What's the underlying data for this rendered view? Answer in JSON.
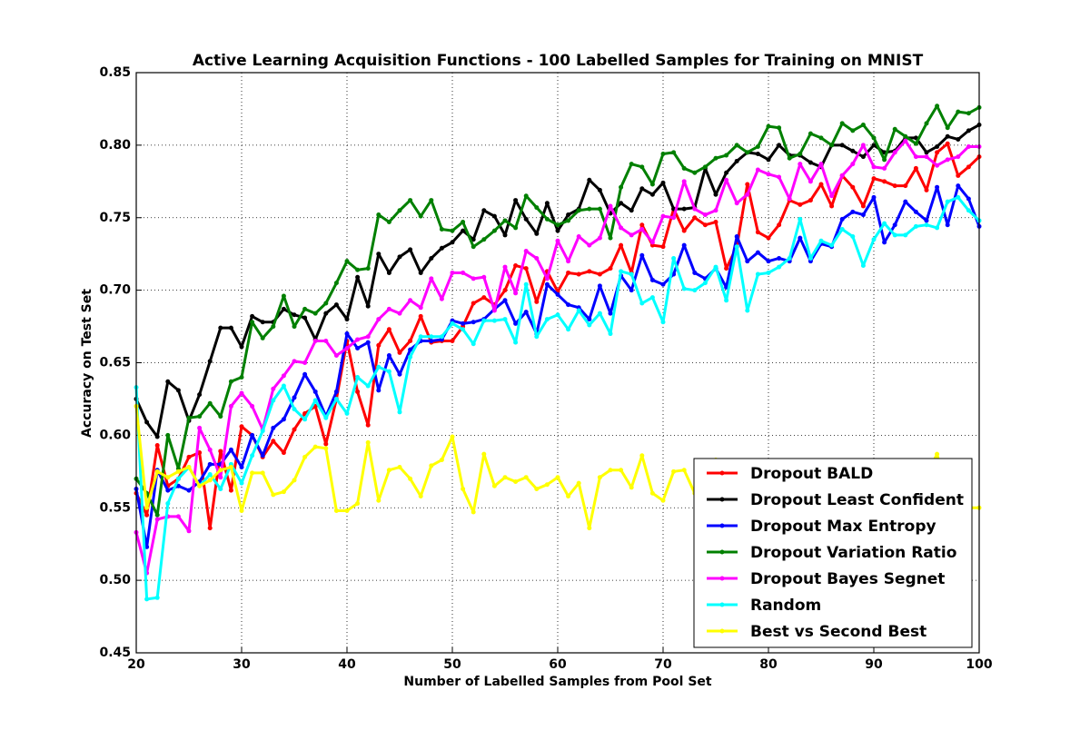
{
  "chart_data": {
    "type": "line",
    "title": "Active Learning Acquisition Functions - 100 Labelled Samples for Training on MNIST",
    "x_label": "Number of Labelled Samples from Pool Set",
    "y_label": "Accuracy on Test Set",
    "x": [
      20,
      21,
      22,
      23,
      24,
      25,
      26,
      27,
      28,
      29,
      30,
      31,
      32,
      33,
      34,
      35,
      36,
      37,
      38,
      39,
      40,
      41,
      42,
      43,
      44,
      45,
      46,
      47,
      48,
      49,
      50,
      51,
      52,
      53,
      54,
      55,
      56,
      57,
      58,
      59,
      60,
      61,
      62,
      63,
      64,
      65,
      66,
      67,
      68,
      69,
      70,
      71,
      72,
      73,
      74,
      75,
      76,
      77,
      78,
      79,
      80,
      81,
      82,
      83,
      84,
      85,
      86,
      87,
      88,
      89,
      90,
      91,
      92,
      93,
      94,
      95,
      96,
      97,
      98,
      99,
      100
    ],
    "xlim": [
      20,
      100
    ],
    "xticks": [
      20,
      30,
      40,
      50,
      60,
      70,
      80,
      90,
      100
    ],
    "ylim": [
      0.45,
      0.85
    ],
    "yticks": [
      0.45,
      {
        "value": 0.5,
        "label": "0.50"
      },
      0.55,
      {
        "value": 0.6,
        "label": "0.60"
      },
      0.65,
      {
        "value": 0.7,
        "label": "0.70"
      },
      0.75,
      {
        "value": 0.8,
        "label": "0.80"
      },
      0.85
    ],
    "grid": true,
    "legend_position": "lower right",
    "series": [
      {
        "name": "Dropout BALD",
        "color": "#ff0000",
        "values": [
          0.56,
          0.545,
          0.593,
          0.565,
          0.57,
          0.585,
          0.588,
          0.536,
          0.589,
          0.562,
          0.606,
          0.6,
          0.585,
          0.596,
          0.588,
          0.604,
          0.615,
          0.62,
          0.594,
          0.625,
          0.665,
          0.63,
          0.607,
          0.662,
          0.673,
          0.657,
          0.665,
          0.682,
          0.664,
          0.665,
          0.665,
          0.675,
          0.691,
          0.695,
          0.69,
          0.7,
          0.717,
          0.715,
          0.692,
          0.713,
          0.699,
          0.712,
          0.711,
          0.713,
          0.711,
          0.715,
          0.731,
          0.712,
          0.745,
          0.731,
          0.73,
          0.756,
          0.741,
          0.75,
          0.745,
          0.747,
          0.715,
          0.73,
          0.773,
          0.74,
          0.736,
          0.745,
          0.762,
          0.759,
          0.762,
          0.773,
          0.758,
          0.779,
          0.771,
          0.758,
          0.777,
          0.775,
          0.772,
          0.772,
          0.784,
          0.769,
          0.795,
          0.801,
          0.779,
          0.785,
          0.792
        ]
      },
      {
        "name": "Dropout Least Confident",
        "color": "#000000",
        "values": [
          0.625,
          0.609,
          0.599,
          0.637,
          0.631,
          0.61,
          0.628,
          0.651,
          0.674,
          0.674,
          0.661,
          0.682,
          0.678,
          0.678,
          0.687,
          0.683,
          0.681,
          0.666,
          0.684,
          0.69,
          0.68,
          0.709,
          0.689,
          0.725,
          0.712,
          0.723,
          0.728,
          0.712,
          0.722,
          0.729,
          0.733,
          0.741,
          0.735,
          0.755,
          0.751,
          0.738,
          0.762,
          0.749,
          0.739,
          0.76,
          0.741,
          0.752,
          0.756,
          0.776,
          0.769,
          0.753,
          0.76,
          0.755,
          0.77,
          0.766,
          0.774,
          0.756,
          0.756,
          0.757,
          0.784,
          0.766,
          0.781,
          0.789,
          0.795,
          0.794,
          0.79,
          0.8,
          0.793,
          0.793,
          0.788,
          0.785,
          0.8,
          0.8,
          0.796,
          0.792,
          0.8,
          0.795,
          0.796,
          0.805,
          0.805,
          0.795,
          0.799,
          0.806,
          0.804,
          0.81,
          0.814
        ]
      },
      {
        "name": "Dropout Max Entropy",
        "color": "#0000ff",
        "values": [
          0.563,
          0.523,
          0.576,
          0.562,
          0.565,
          0.562,
          0.568,
          0.58,
          0.58,
          0.59,
          0.578,
          0.6,
          0.586,
          0.605,
          0.611,
          0.626,
          0.642,
          0.63,
          0.613,
          0.63,
          0.67,
          0.66,
          0.664,
          0.631,
          0.655,
          0.642,
          0.659,
          0.665,
          0.665,
          0.666,
          0.679,
          0.677,
          0.678,
          0.68,
          0.687,
          0.693,
          0.677,
          0.685,
          0.67,
          0.704,
          0.697,
          0.69,
          0.688,
          0.68,
          0.703,
          0.684,
          0.71,
          0.7,
          0.724,
          0.707,
          0.704,
          0.711,
          0.731,
          0.712,
          0.708,
          0.715,
          0.702,
          0.737,
          0.72,
          0.726,
          0.72,
          0.722,
          0.72,
          0.736,
          0.72,
          0.732,
          0.73,
          0.749,
          0.754,
          0.752,
          0.764,
          0.733,
          0.745,
          0.761,
          0.754,
          0.748,
          0.771,
          0.745,
          0.772,
          0.763,
          0.744
        ]
      },
      {
        "name": "Dropout Variation Ratio",
        "color": "#008000",
        "values": [
          0.57,
          0.56,
          0.545,
          0.6,
          0.577,
          0.612,
          0.613,
          0.622,
          0.613,
          0.637,
          0.64,
          0.678,
          0.667,
          0.675,
          0.696,
          0.675,
          0.687,
          0.684,
          0.691,
          0.705,
          0.72,
          0.714,
          0.715,
          0.752,
          0.747,
          0.755,
          0.762,
          0.751,
          0.762,
          0.742,
          0.741,
          0.747,
          0.73,
          0.735,
          0.741,
          0.748,
          0.743,
          0.765,
          0.757,
          0.749,
          0.745,
          0.748,
          0.755,
          0.756,
          0.756,
          0.736,
          0.771,
          0.787,
          0.785,
          0.773,
          0.794,
          0.795,
          0.784,
          0.781,
          0.785,
          0.791,
          0.793,
          0.8,
          0.795,
          0.799,
          0.813,
          0.812,
          0.791,
          0.794,
          0.808,
          0.805,
          0.8,
          0.815,
          0.81,
          0.814,
          0.805,
          0.79,
          0.811,
          0.806,
          0.801,
          0.815,
          0.827,
          0.812,
          0.823,
          0.822,
          0.826
        ]
      },
      {
        "name": "Dropout Bayes Segnet",
        "color": "#ff00ff",
        "values": [
          0.533,
          0.505,
          0.542,
          0.544,
          0.544,
          0.534,
          0.605,
          0.59,
          0.571,
          0.62,
          0.629,
          0.62,
          0.604,
          0.632,
          0.641,
          0.651,
          0.65,
          0.665,
          0.665,
          0.655,
          0.66,
          0.666,
          0.668,
          0.68,
          0.687,
          0.684,
          0.693,
          0.688,
          0.708,
          0.694,
          0.712,
          0.712,
          0.708,
          0.709,
          0.686,
          0.716,
          0.698,
          0.727,
          0.722,
          0.708,
          0.734,
          0.72,
          0.737,
          0.731,
          0.736,
          0.758,
          0.743,
          0.738,
          0.742,
          0.733,
          0.751,
          0.75,
          0.775,
          0.756,
          0.752,
          0.755,
          0.776,
          0.76,
          0.766,
          0.783,
          0.78,
          0.778,
          0.763,
          0.787,
          0.775,
          0.787,
          0.765,
          0.779,
          0.787,
          0.8,
          0.785,
          0.784,
          0.795,
          0.803,
          0.792,
          0.792,
          0.786,
          0.79,
          0.792,
          0.799,
          0.799
        ]
      },
      {
        "name": "Random",
        "color": "#00ffff",
        "values": [
          0.633,
          0.487,
          0.488,
          0.553,
          0.57,
          0.578,
          0.565,
          0.573,
          0.563,
          0.58,
          0.567,
          0.586,
          0.603,
          0.624,
          0.634,
          0.618,
          0.611,
          0.624,
          0.612,
          0.625,
          0.615,
          0.64,
          0.634,
          0.647,
          0.644,
          0.616,
          0.654,
          0.668,
          0.668,
          0.668,
          0.677,
          0.673,
          0.663,
          0.679,
          0.679,
          0.68,
          0.664,
          0.704,
          0.668,
          0.68,
          0.683,
          0.673,
          0.686,
          0.676,
          0.684,
          0.67,
          0.713,
          0.711,
          0.691,
          0.695,
          0.678,
          0.722,
          0.701,
          0.7,
          0.705,
          0.716,
          0.693,
          0.73,
          0.686,
          0.711,
          0.712,
          0.716,
          0.722,
          0.749,
          0.722,
          0.734,
          0.731,
          0.742,
          0.737,
          0.717,
          0.735,
          0.746,
          0.738,
          0.738,
          0.744,
          0.745,
          0.743,
          0.761,
          0.764,
          0.755,
          0.748
        ]
      },
      {
        "name": "Best vs Second Best",
        "color": "#ffff00",
        "values": [
          0.62,
          0.55,
          0.575,
          0.571,
          0.575,
          0.578,
          0.565,
          0.569,
          0.576,
          0.578,
          0.548,
          0.574,
          0.574,
          0.559,
          0.561,
          0.569,
          0.585,
          0.592,
          0.591,
          0.548,
          0.548,
          0.553,
          0.595,
          0.555,
          0.576,
          0.578,
          0.57,
          0.558,
          0.579,
          0.583,
          0.599,
          0.563,
          0.547,
          0.587,
          0.565,
          0.571,
          0.568,
          0.571,
          0.563,
          0.566,
          0.571,
          0.558,
          0.567,
          0.536,
          0.571,
          0.576,
          0.576,
          0.564,
          0.586,
          0.56,
          0.555,
          0.575,
          0.576,
          0.56,
          0.56,
          0.583,
          0.57,
          0.575,
          0.565,
          0.57,
          0.575,
          0.57,
          0.568,
          0.575,
          0.572,
          0.568,
          0.575,
          0.57,
          0.566,
          0.572,
          0.57,
          0.575,
          0.568,
          0.57,
          0.574,
          0.572,
          0.587,
          0.56,
          0.552,
          0.55,
          0.55
        ]
      }
    ]
  }
}
